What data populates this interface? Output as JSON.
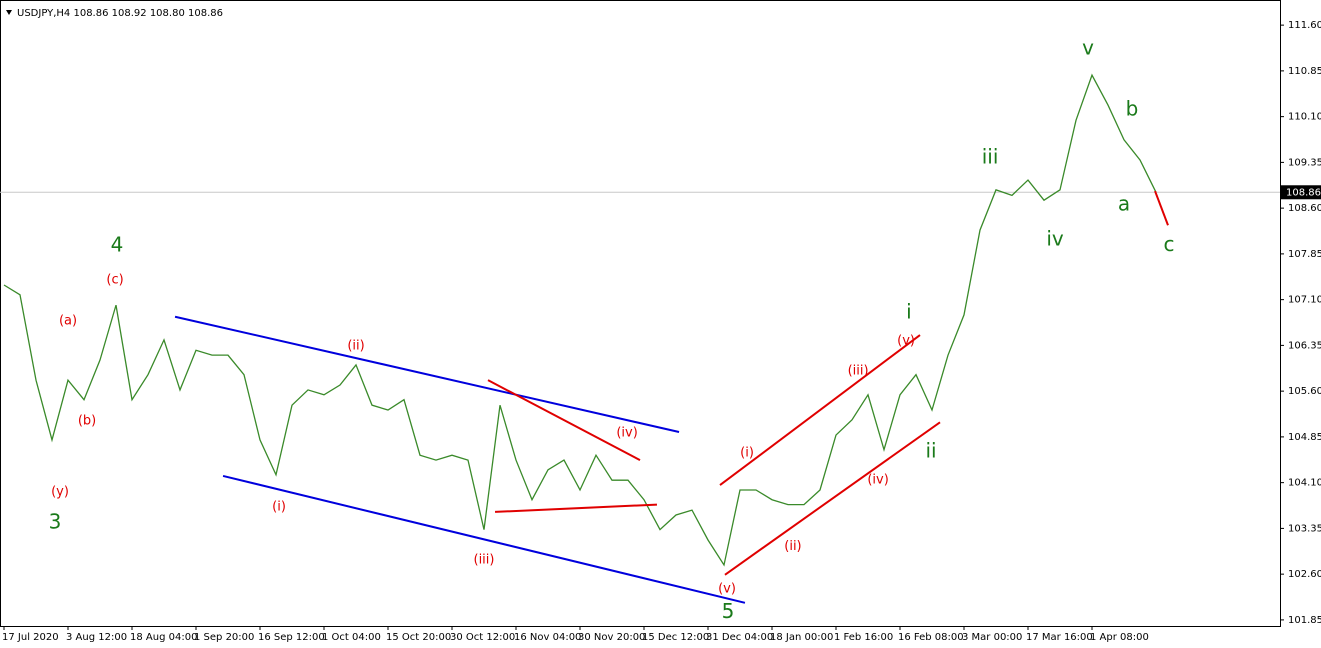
{
  "chart_data": {
    "type": "line",
    "title": "USDJPY,H4  108.86 108.92 108.80 108.86",
    "categories": [
      "17 Jul 2020",
      null,
      null,
      null,
      "3 Aug 12:00",
      null,
      null,
      null,
      "18 Aug 04:00",
      null,
      null,
      null,
      "1 Sep 20:00",
      null,
      null,
      null,
      "16 Sep 12:00",
      null,
      null,
      null,
      "1 Oct 04:00",
      null,
      null,
      null,
      "15 Oct 20:00",
      null,
      null,
      null,
      "30 Oct 12:00",
      null,
      null,
      null,
      "16 Nov 04:00",
      null,
      null,
      null,
      "30 Nov 20:00",
      null,
      null,
      null,
      "15 Dec 12:00",
      null,
      null,
      null,
      "31 Dec 04:00",
      null,
      null,
      null,
      "18 Jan 00:00",
      null,
      null,
      null,
      "1 Feb 16:00",
      null,
      null,
      null,
      "16 Feb 08:00",
      null,
      null,
      null,
      "3 Mar 00:00",
      null,
      null,
      null,
      "17 Mar 16:00",
      null,
      null,
      null,
      "1 Apr 08:00",
      null,
      null,
      null,
      null
    ],
    "series": [
      {
        "name": "USDJPY",
        "color": "#3a8a2a",
        "values": [
          107.34,
          107.18,
          105.78,
          104.8,
          105.78,
          105.46,
          106.11,
          107.01,
          105.46,
          105.87,
          106.44,
          105.62,
          106.27,
          106.19,
          106.19,
          105.87,
          104.8,
          104.23,
          105.37,
          105.62,
          105.54,
          105.7,
          106.03,
          105.37,
          105.29,
          105.46,
          104.55,
          104.47,
          104.55,
          104.47,
          103.33,
          105.37,
          104.47,
          103.82,
          104.31,
          104.47,
          103.98,
          104.55,
          104.14,
          104.14,
          103.82,
          103.33,
          103.57,
          103.65,
          103.16,
          102.75,
          103.98,
          103.98,
          103.82,
          103.74,
          103.74,
          103.98,
          104.88,
          105.13,
          105.54,
          104.64,
          105.54,
          105.87,
          105.29,
          106.19,
          106.85,
          108.24,
          108.9,
          108.81,
          109.06,
          108.73,
          108.9,
          110.04,
          110.78,
          110.29,
          109.72,
          109.39,
          108.86
        ]
      }
    ],
    "last_price": 108.86,
    "ylim": [
      101.75,
      111.93
    ],
    "yticks": [
      101.85,
      {
        "value": 102.6,
        "label": "102.60"
      },
      103.35,
      {
        "value": 104.1,
        "label": "104.10"
      },
      104.85,
      {
        "value": 105.6,
        "label": "105.60"
      },
      106.35,
      {
        "value": 107.1,
        "label": "107.10"
      },
      107.85,
      {
        "value": 108.6,
        "label": "108.60"
      },
      109.35,
      {
        "value": 110.1,
        "label": "110.10"
      },
      110.85,
      {
        "value": 111.6,
        "label": "111.60"
      }
    ],
    "lines": [
      {
        "color": "#0000dd",
        "x": [
          10.69,
          42.19
        ],
        "y": [
          106.82,
          104.93
        ]
      },
      {
        "color": "#0000dd",
        "x": [
          13.69,
          46.31
        ],
        "y": [
          104.21,
          102.13
        ]
      },
      {
        "color": "#e00000",
        "x": [
          30.25,
          39.75
        ],
        "y": [
          105.78,
          104.47
        ]
      },
      {
        "color": "#e00000",
        "x": [
          30.69,
          40.81
        ],
        "y": [
          103.62,
          103.74
        ]
      },
      {
        "color": "#e00000",
        "x": [
          44.75,
          57.25
        ],
        "y": [
          104.06,
          106.52
        ]
      },
      {
        "color": "#e00000",
        "x": [
          45.06,
          58.5
        ],
        "y": [
          102.59,
          105.09
        ]
      },
      {
        "color": "#e00000",
        "x": [
          71.94,
          72.75
        ],
        "y": [
          108.88,
          108.32
        ]
      }
    ],
    "annotations": [
      {
        "text": "3",
        "color": "#1a7a1a",
        "big": true,
        "x": 3.19,
        "y": 103.44
      },
      {
        "text": "4",
        "color": "#1a7a1a",
        "big": true,
        "x": 7.06,
        "y": 107.98
      },
      {
        "text": "5",
        "color": "#1a7a1a",
        "big": true,
        "x": 45.25,
        "y": 101.97
      },
      {
        "text": "i",
        "color": "#1a7a1a",
        "big": true,
        "x": 56.56,
        "y": 106.88
      },
      {
        "text": "ii",
        "color": "#1a7a1a",
        "big": true,
        "x": 57.94,
        "y": 104.6
      },
      {
        "text": "iii",
        "color": "#1a7a1a",
        "big": true,
        "x": 61.63,
        "y": 109.42
      },
      {
        "text": "iv",
        "color": "#1a7a1a",
        "big": true,
        "x": 65.69,
        "y": 108.08
      },
      {
        "text": "v",
        "color": "#1a7a1a",
        "big": true,
        "x": 67.75,
        "y": 111.21
      },
      {
        "text": "a",
        "color": "#1a7a1a",
        "big": true,
        "x": 70,
        "y": 108.65
      },
      {
        "text": "b",
        "color": "#1a7a1a",
        "big": true,
        "x": 70.5,
        "y": 110.21
      },
      {
        "text": "c",
        "color": "#1a7a1a",
        "big": true,
        "x": 72.81,
        "y": 107.99
      },
      {
        "text": "(a)",
        "color": "#e00000",
        "big": false,
        "x": 4,
        "y": 106.75
      },
      {
        "text": "(b)",
        "color": "#e00000",
        "big": false,
        "x": 5.19,
        "y": 105.11
      },
      {
        "text": "(c)",
        "color": "#e00000",
        "big": false,
        "x": 6.94,
        "y": 107.42
      },
      {
        "text": "(y)",
        "color": "#e00000",
        "big": false,
        "x": 3.5,
        "y": 103.95
      },
      {
        "text": "(i)",
        "color": "#e00000",
        "big": false,
        "x": 17.19,
        "y": 103.7
      },
      {
        "text": "(ii)",
        "color": "#e00000",
        "big": false,
        "x": 22,
        "y": 106.34
      },
      {
        "text": "(iii)",
        "color": "#e00000",
        "big": false,
        "x": 30,
        "y": 102.83
      },
      {
        "text": "(iv)",
        "color": "#e00000",
        "big": false,
        "x": 38.94,
        "y": 104.91
      },
      {
        "text": "(v)",
        "color": "#e00000",
        "big": false,
        "x": 45.19,
        "y": 102.36
      },
      {
        "text": "(i)",
        "color": "#e00000",
        "big": false,
        "x": 46.44,
        "y": 104.59
      },
      {
        "text": "(ii)",
        "color": "#e00000",
        "big": false,
        "x": 49.31,
        "y": 103.05
      },
      {
        "text": "(iii)",
        "color": "#e00000",
        "big": false,
        "x": 53.38,
        "y": 105.93
      },
      {
        "text": "(iv)",
        "color": "#e00000",
        "big": false,
        "x": 54.63,
        "y": 104.14
      },
      {
        "text": "(v)",
        "color": "#e00000",
        "big": false,
        "x": 56.38,
        "y": 106.42
      }
    ]
  }
}
